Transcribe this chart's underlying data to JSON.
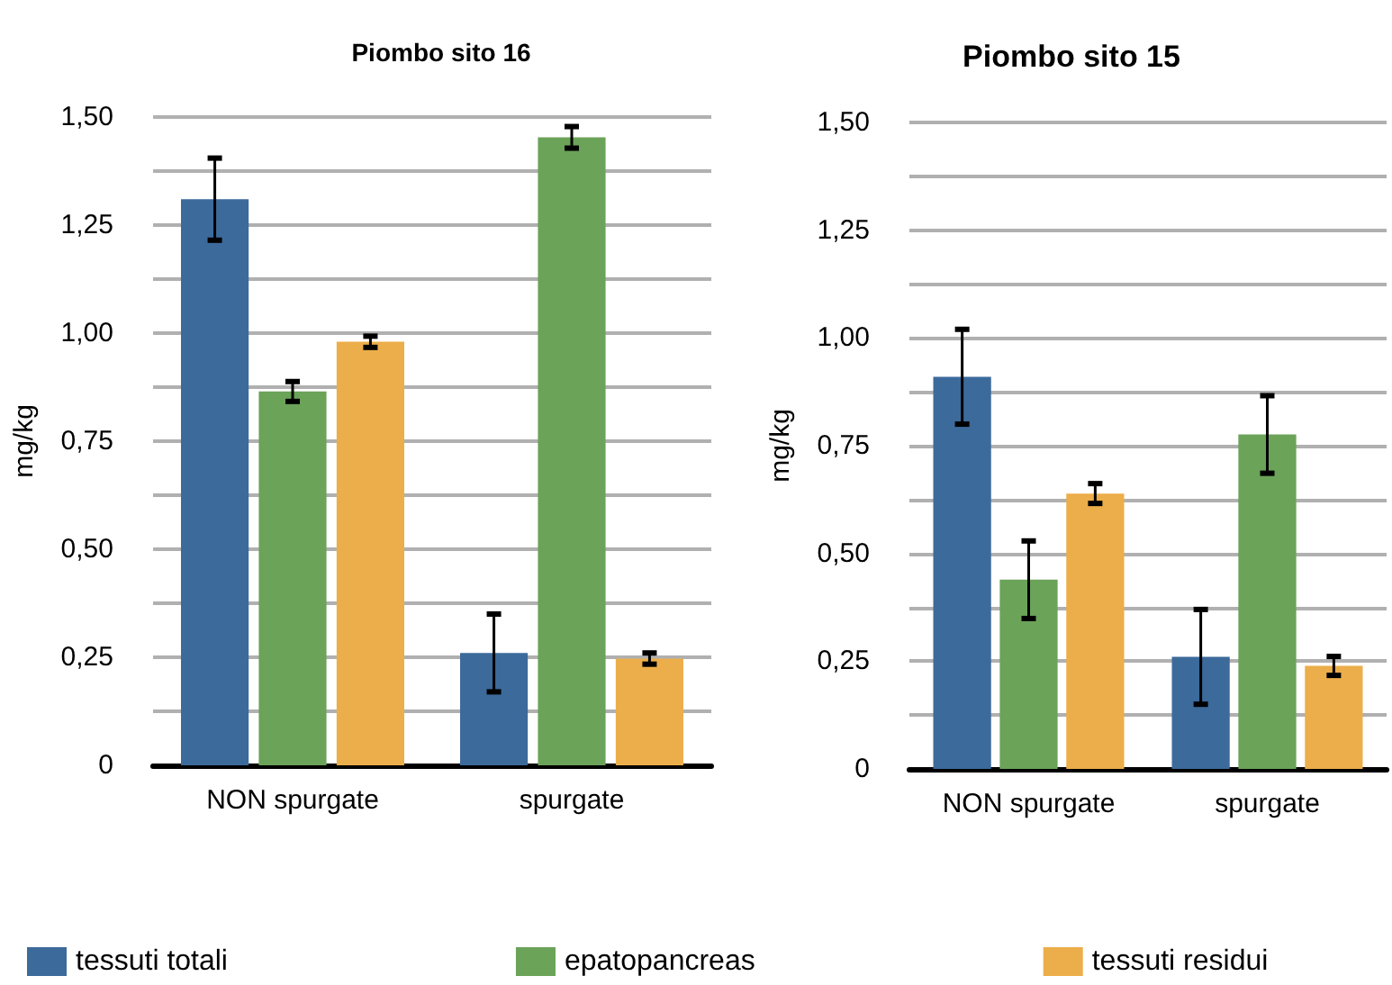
{
  "chart_data": [
    {
      "type": "bar",
      "title": "Piombo sito 16",
      "ylabel": "mg/kg",
      "categories": [
        "NON spurgate",
        "spurgate"
      ],
      "legend": "bottom",
      "grid": "y",
      "ylim": [
        0,
        1.5
      ],
      "yticks": [
        0,
        {
          "value": 0.125,
          "label": null
        },
        {
          "value": 0.25,
          "label": "0,25"
        },
        {
          "value": 0.375,
          "label": null
        },
        {
          "value": 0.5,
          "label": "0,50"
        },
        {
          "value": 0.625,
          "label": null
        },
        {
          "value": 0.75,
          "label": "0,75"
        },
        {
          "value": 0.875,
          "label": null
        },
        {
          "value": 1,
          "label": "1,00"
        },
        {
          "value": 1.125,
          "label": null
        },
        {
          "value": 1.25,
          "label": "1,25"
        },
        {
          "value": 1.375,
          "label": null
        },
        {
          "value": 1.5,
          "label": "1,50"
        }
      ],
      "series": [
        {
          "name": "tessuti totali",
          "color": "#3c6a9b",
          "values": [
            1.31,
            0.26
          ],
          "errors": [
            0.095,
            0.09
          ]
        },
        {
          "name": "epatopancreas",
          "color": "#6ba359",
          "values": [
            0.865,
            1.453
          ],
          "errors": [
            0.023,
            0.025
          ]
        },
        {
          "name": "tessuti residui",
          "color": "#ecae4a",
          "values": [
            0.98,
            0.247
          ],
          "errors": [
            0.013,
            0.013
          ]
        }
      ]
    },
    {
      "type": "bar",
      "title": "Piombo sito 15",
      "ylabel": "mg/kg",
      "categories": [
        "NON spurgate",
        "spurgate"
      ],
      "grid": "y",
      "ylim": [
        0,
        1.5
      ],
      "yticks": [
        0,
        {
          "value": 0.125,
          "label": null
        },
        {
          "value": 0.25,
          "label": "0,25"
        },
        {
          "value": 0.375,
          "label": null
        },
        {
          "value": 0.5,
          "label": "0,50"
        },
        {
          "value": 0.625,
          "label": null
        },
        {
          "value": 0.75,
          "label": "0,75"
        },
        {
          "value": 0.875,
          "label": null
        },
        {
          "value": 1,
          "label": "1,00"
        },
        {
          "value": 1.125,
          "label": null
        },
        {
          "value": 1.25,
          "label": "1,25"
        },
        {
          "value": 1.375,
          "label": null
        },
        {
          "value": 1.5,
          "label": "1,50"
        }
      ],
      "series": [
        {
          "color": "#3c6a9b",
          "values": [
            0.91,
            0.26
          ],
          "errors": [
            0.11,
            0.11
          ]
        },
        {
          "color": "#6ba359",
          "values": [
            0.439,
            0.776
          ],
          "errors": [
            0.09,
            0.09
          ]
        },
        {
          "color": "#ecae4a",
          "values": [
            0.639,
            0.239
          ],
          "errors": [
            0.023,
            0.022
          ]
        }
      ]
    }
  ]
}
